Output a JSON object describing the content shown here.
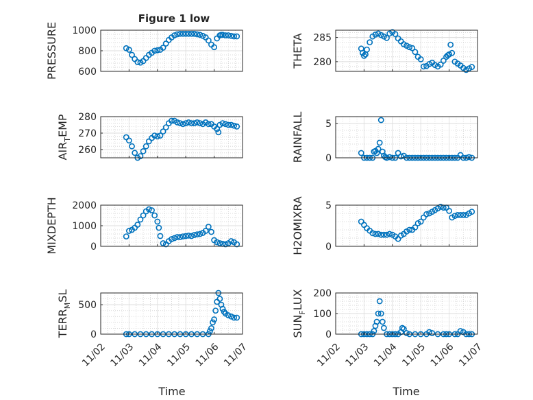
{
  "figure_title": "Figure 1 low",
  "xlabel": "Time",
  "x_ticks": [
    "11/02",
    "11/03",
    "11/04",
    "11/05",
    "11/06",
    "11/07"
  ],
  "marker_color": "#0072BD",
  "chart_data": [
    {
      "type": "scatter",
      "ylabel_main": "PRESSURE",
      "ylabel_sub": "",
      "ylim": [
        600,
        1000
      ],
      "yticks": [
        600,
        800,
        1000
      ],
      "grid": true,
      "x": [
        0.9,
        1.0,
        1.1,
        1.2,
        1.3,
        1.4,
        1.5,
        1.6,
        1.7,
        1.8,
        1.9,
        2.0,
        2.1,
        2.2,
        2.3,
        2.4,
        2.5,
        2.6,
        2.7,
        2.8,
        2.9,
        3.0,
        3.1,
        3.2,
        3.3,
        3.4,
        3.5,
        3.6,
        3.7,
        3.8,
        3.9,
        4.0,
        4.1,
        4.2,
        4.25,
        4.3,
        4.4,
        4.5,
        4.6,
        4.7,
        4.8
      ],
      "y": [
        825,
        810,
        760,
        720,
        690,
        685,
        700,
        730,
        760,
        780,
        800,
        805,
        810,
        830,
        870,
        905,
        930,
        950,
        960,
        965,
        965,
        965,
        965,
        965,
        965,
        960,
        955,
        945,
        930,
        900,
        860,
        835,
        920,
        950,
        955,
        955,
        950,
        950,
        945,
        940,
        940
      ]
    },
    {
      "type": "scatter",
      "ylabel_main": "THETA",
      "ylabel_sub": "",
      "ylim": [
        278,
        286.5
      ],
      "yticks": [
        280,
        285
      ],
      "grid": true,
      "x": [
        0.9,
        0.95,
        1.0,
        1.05,
        1.1,
        1.2,
        1.3,
        1.4,
        1.5,
        1.6,
        1.7,
        1.8,
        1.9,
        2.0,
        2.1,
        2.2,
        2.3,
        2.4,
        2.5,
        2.6,
        2.7,
        2.8,
        2.9,
        3.0,
        3.1,
        3.2,
        3.3,
        3.4,
        3.5,
        3.6,
        3.7,
        3.8,
        3.9,
        3.95,
        4.0,
        4.05,
        4.1,
        4.2,
        4.3,
        4.4,
        4.5,
        4.6,
        4.7,
        4.8
      ],
      "y": [
        282.7,
        281.8,
        281.2,
        281.5,
        282.5,
        284.0,
        285.2,
        285.6,
        285.8,
        285.5,
        285.2,
        284.9,
        285.8,
        286.1,
        285.7,
        284.8,
        284.2,
        283.6,
        283.3,
        283.0,
        282.8,
        282.0,
        281.0,
        280.5,
        279.0,
        279.1,
        279.5,
        279.8,
        279.3,
        279.0,
        279.4,
        280.2,
        281.0,
        281.3,
        281.5,
        283.5,
        281.8,
        280.0,
        279.6,
        279.2,
        278.7,
        278.3,
        278.6,
        278.9
      ]
    },
    {
      "type": "scatter",
      "ylabel_main": "AIR",
      "ylabel_sub": "T",
      "ylabel_tail": "EMP",
      "ylim": [
        255,
        280
      ],
      "yticks": [
        260,
        270,
        280
      ],
      "grid": true,
      "x": [
        0.9,
        1.0,
        1.1,
        1.2,
        1.3,
        1.4,
        1.5,
        1.6,
        1.7,
        1.8,
        1.9,
        2.0,
        2.1,
        2.2,
        2.3,
        2.4,
        2.5,
        2.6,
        2.7,
        2.8,
        2.9,
        3.0,
        3.1,
        3.2,
        3.3,
        3.4,
        3.5,
        3.6,
        3.7,
        3.8,
        3.9,
        4.0,
        4.1,
        4.15,
        4.2,
        4.3,
        4.4,
        4.5,
        4.6,
        4.7,
        4.8
      ],
      "y": [
        267.5,
        265.5,
        262.0,
        258.0,
        255.0,
        256.0,
        259.0,
        262.0,
        265.0,
        267.0,
        268.5,
        268.0,
        268.5,
        271.0,
        273.5,
        276.0,
        277.5,
        277.5,
        276.5,
        276.0,
        275.5,
        276.0,
        276.5,
        276.0,
        276.0,
        276.5,
        276.0,
        275.5,
        276.5,
        275.5,
        275.5,
        274.0,
        272.5,
        270.5,
        275.0,
        276.0,
        275.5,
        275.0,
        275.0,
        274.5,
        274.0
      ]
    },
    {
      "type": "scatter",
      "ylabel_main": "RAINFALL",
      "ylabel_sub": "",
      "ylim": [
        0,
        6
      ],
      "yticks": [
        0,
        5
      ],
      "grid": true,
      "x": [
        0.9,
        1.0,
        1.1,
        1.2,
        1.3,
        1.35,
        1.4,
        1.45,
        1.5,
        1.55,
        1.6,
        1.65,
        1.7,
        1.75,
        1.8,
        1.9,
        2.0,
        2.1,
        2.2,
        2.3,
        2.4,
        2.5,
        2.6,
        2.7,
        2.8,
        2.9,
        3.0,
        3.1,
        3.2,
        3.3,
        3.4,
        3.5,
        3.6,
        3.7,
        3.8,
        3.9,
        4.0,
        4.1,
        4.2,
        4.3,
        4.4,
        4.5,
        4.6,
        4.7,
        4.8
      ],
      "y": [
        0.7,
        0.0,
        0.0,
        0.0,
        0.0,
        0.9,
        1.0,
        0.7,
        1.3,
        2.2,
        5.5,
        0.9,
        0.3,
        0.1,
        0.0,
        0.1,
        0.0,
        0.0,
        0.7,
        0.2,
        0.3,
        0.0,
        0.0,
        0.0,
        0.0,
        0.0,
        0.0,
        0.0,
        0.0,
        0.0,
        0.0,
        0.0,
        0.0,
        0.0,
        0.0,
        0.0,
        0.0,
        0.0,
        0.0,
        0.0,
        0.4,
        0.0,
        0.0,
        0.1,
        0.0
      ]
    },
    {
      "type": "scatter",
      "ylabel_main": "MIXDEPTH",
      "ylabel_sub": "",
      "ylim": [
        0,
        2000
      ],
      "yticks": [
        0,
        1000,
        2000
      ],
      "grid": true,
      "x": [
        0.9,
        1.0,
        1.1,
        1.2,
        1.3,
        1.4,
        1.5,
        1.6,
        1.7,
        1.8,
        1.9,
        2.0,
        2.05,
        2.1,
        2.2,
        2.3,
        2.4,
        2.5,
        2.6,
        2.7,
        2.8,
        2.9,
        3.0,
        3.1,
        3.2,
        3.3,
        3.4,
        3.5,
        3.6,
        3.7,
        3.8,
        3.9,
        4.0,
        4.1,
        4.2,
        4.3,
        4.4,
        4.5,
        4.6,
        4.7,
        4.8
      ],
      "y": [
        480,
        750,
        800,
        900,
        1050,
        1300,
        1500,
        1700,
        1800,
        1750,
        1500,
        1200,
        900,
        500,
        150,
        100,
        250,
        350,
        400,
        450,
        450,
        480,
        500,
        520,
        500,
        550,
        580,
        600,
        650,
        750,
        950,
        700,
        300,
        200,
        150,
        120,
        100,
        150,
        250,
        200,
        100
      ]
    },
    {
      "type": "scatter",
      "ylabel_main": "H2OMIXRA",
      "ylabel_sub": "",
      "ylim": [
        0,
        5
      ],
      "yticks": [
        0,
        5
      ],
      "grid": true,
      "x": [
        0.9,
        1.0,
        1.1,
        1.2,
        1.3,
        1.4,
        1.5,
        1.6,
        1.7,
        1.8,
        1.9,
        2.0,
        2.1,
        2.2,
        2.3,
        2.4,
        2.5,
        2.6,
        2.7,
        2.8,
        2.9,
        3.0,
        3.1,
        3.2,
        3.3,
        3.4,
        3.5,
        3.6,
        3.7,
        3.8,
        3.9,
        4.0,
        4.1,
        4.2,
        4.3,
        4.4,
        4.5,
        4.6,
        4.7,
        4.8
      ],
      "y": [
        3.0,
        2.6,
        2.2,
        1.9,
        1.6,
        1.5,
        1.5,
        1.4,
        1.4,
        1.4,
        1.5,
        1.4,
        1.2,
        0.9,
        1.3,
        1.5,
        1.8,
        2.0,
        2.0,
        2.3,
        2.8,
        3.0,
        3.5,
        3.9,
        4.0,
        4.2,
        4.4,
        4.6,
        4.8,
        4.7,
        4.7,
        4.3,
        3.5,
        3.7,
        3.8,
        3.8,
        3.8,
        3.8,
        4.0,
        4.2
      ]
    },
    {
      "type": "scatter",
      "ylabel_main": "TERR",
      "ylabel_sub": "M",
      "ylabel_tail": "SL",
      "ylim": [
        0,
        700
      ],
      "yticks": [
        0,
        500
      ],
      "grid": true,
      "x": [
        0.9,
        1.0,
        1.2,
        1.4,
        1.6,
        1.8,
        2.0,
        2.2,
        2.4,
        2.6,
        2.8,
        3.0,
        3.2,
        3.4,
        3.6,
        3.8,
        3.85,
        3.9,
        3.95,
        4.0,
        4.05,
        4.1,
        4.15,
        4.2,
        4.25,
        4.3,
        4.35,
        4.4,
        4.5,
        4.6,
        4.7,
        4.8
      ],
      "y": [
        0,
        0,
        0,
        0,
        0,
        0,
        0,
        0,
        0,
        0,
        0,
        0,
        0,
        0,
        0,
        0,
        50,
        100,
        200,
        250,
        400,
        550,
        700,
        600,
        500,
        430,
        380,
        350,
        320,
        300,
        280,
        280
      ]
    },
    {
      "type": "scatter",
      "ylabel_main": "SUN",
      "ylabel_sub": "F",
      "ylabel_tail": "LUX",
      "ylim": [
        0,
        200
      ],
      "yticks": [
        0,
        100,
        200
      ],
      "grid": true,
      "x": [
        0.9,
        1.0,
        1.1,
        1.2,
        1.3,
        1.35,
        1.4,
        1.45,
        1.5,
        1.55,
        1.6,
        1.65,
        1.7,
        1.8,
        1.9,
        2.0,
        2.1,
        2.2,
        2.3,
        2.35,
        2.4,
        2.5,
        2.6,
        2.8,
        3.0,
        3.2,
        3.3,
        3.4,
        3.6,
        3.8,
        3.9,
        4.0,
        4.2,
        4.3,
        4.4,
        4.5,
        4.6,
        4.7,
        4.8
      ],
      "y": [
        0,
        0,
        0,
        0,
        0,
        15,
        40,
        60,
        100,
        160,
        100,
        60,
        30,
        0,
        0,
        0,
        0,
        0,
        10,
        30,
        25,
        5,
        0,
        0,
        0,
        0,
        10,
        5,
        0,
        0,
        0,
        0,
        0,
        0,
        15,
        10,
        0,
        0,
        0
      ]
    }
  ]
}
